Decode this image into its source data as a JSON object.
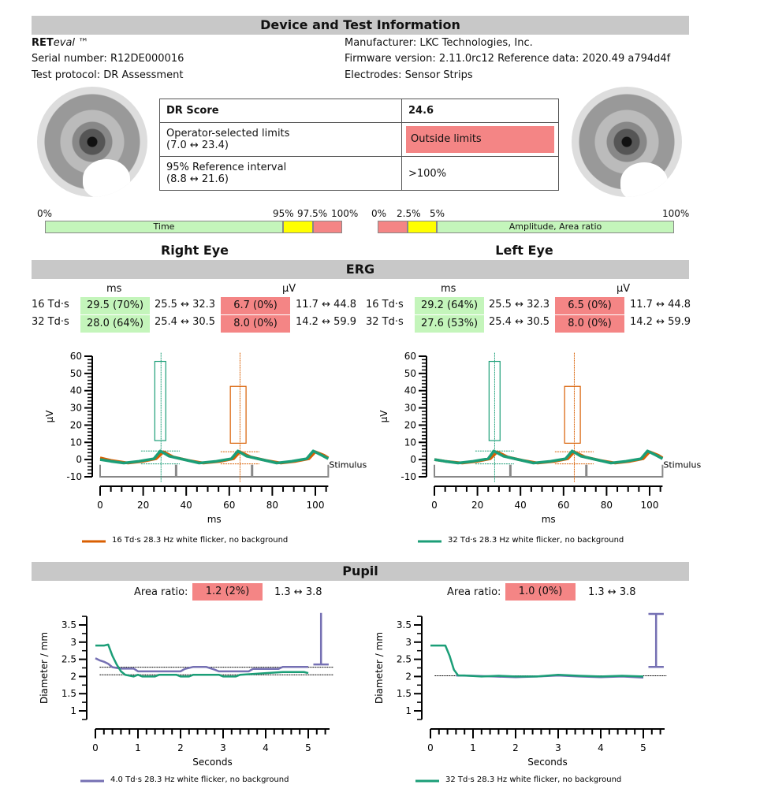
{
  "header": {
    "title": "Device and Test Information"
  },
  "device": {
    "brand_bold": "RET",
    "brand_italic": "eval",
    "brand_tm": " ™",
    "serial": "Serial number: R12DE000016",
    "protocol": "Test protocol: DR Assessment",
    "manufacturer": "Manufacturer: LKC Technologies, Inc.",
    "firmware": "Firmware version: 2.11.0rc12 Reference data: 2020.49 a794d4f",
    "electrodes": "Electrodes: Sensor Strips"
  },
  "dr_table": {
    "score_label": "DR Score",
    "score_value": "24.6",
    "limits_label": "Operator-selected limits",
    "limits_range": "(7.0 ↔ 23.4)",
    "limits_value": "Outside limits",
    "ref_label": "95% Reference interval",
    "ref_range": "(8.8 ↔ 21.6)",
    "ref_value": ">100%"
  },
  "scales": {
    "time": {
      "label": "Time",
      "ticks": [
        "0%",
        "95%",
        "97.5%",
        "100%"
      ]
    },
    "amplitude": {
      "label": "Amplitude, Area ratio",
      "ticks": [
        "0%",
        "2.5%",
        "5%",
        "100%"
      ]
    }
  },
  "colors": {
    "header_gray": "#c8c8c8",
    "ok_green": "#c4f5bb",
    "bad_red": "#f48585",
    "warn_yellow": "#ffff00",
    "trace_orange": "#d95f02",
    "trace_green": "#1b9e77",
    "trace_purple": "#7570b3"
  },
  "eyes": {
    "right": "Right Eye",
    "left": "Left Eye"
  },
  "erg": {
    "title": "ERG",
    "unit_time": "ms",
    "unit_amp": "µV",
    "right": [
      {
        "label": "16 Td·s",
        "time": "29.5 (70%)",
        "time_range": "25.5 ↔ 32.3",
        "amp": "6.7 (0%)",
        "amp_range": "11.7 ↔ 44.8"
      },
      {
        "label": "32 Td·s",
        "time": "28.0 (64%)",
        "time_range": "25.4 ↔ 30.5",
        "amp": "8.0 (0%)",
        "amp_range": "14.2 ↔ 59.9"
      }
    ],
    "left": [
      {
        "label": "16 Td·s",
        "time": "29.2 (64%)",
        "time_range": "25.5 ↔ 32.3",
        "amp": "6.5 (0%)",
        "amp_range": "11.7 ↔ 44.8"
      },
      {
        "label": "32 Td·s",
        "time": "27.6 (53%)",
        "time_range": "25.4 ↔ 30.5",
        "amp": "8.0 (0%)",
        "amp_range": "14.2 ↔ 59.9"
      }
    ]
  },
  "pupil": {
    "title": "Pupil",
    "area_label": "Area ratio:",
    "right": {
      "value": "1.2 (2%)",
      "range": "1.3 ↔ 3.8"
    },
    "left": {
      "value": "1.0 (0%)",
      "range": "1.3 ↔ 3.8"
    }
  },
  "chart_data": [
    {
      "id": "erg-right",
      "type": "line",
      "xlabel": "ms",
      "ylabel": "µV",
      "xlim": [
        0,
        106
      ],
      "ylim": [
        -10,
        60
      ],
      "xticks": [
        0,
        20,
        40,
        60,
        80,
        100
      ],
      "yticks": [
        60,
        50,
        40,
        30,
        20,
        10,
        0,
        -10
      ],
      "annotation": "Stimulus",
      "legend": "16 Td·s 28.3 Hz white flicker, no background",
      "series": [
        {
          "color": "#d95f02",
          "x": [
            0,
            5,
            13,
            20,
            26,
            29.5,
            34,
            41,
            48,
            56,
            62,
            65,
            70,
            77,
            84,
            91,
            97,
            100,
            104,
            106
          ],
          "y": [
            1,
            -0.5,
            -2,
            -1,
            0.5,
            4.5,
            1.5,
            -0.5,
            -2,
            -1,
            0.5,
            4.5,
            1.5,
            -0.5,
            -2,
            -1,
            0.5,
            4.5,
            2.5,
            1
          ]
        },
        {
          "color": "#1b9e77",
          "x": [
            0,
            5,
            11,
            18,
            25,
            28,
            32,
            39,
            46,
            54,
            61,
            64,
            68,
            75,
            82,
            89,
            96,
            99,
            103,
            106
          ],
          "y": [
            0,
            -1,
            -2,
            -1,
            0.5,
            5,
            2,
            0,
            -2,
            -1,
            0.5,
            5,
            2,
            0,
            -2,
            -1,
            0.5,
            5,
            2.5,
            0.5
          ]
        }
      ],
      "boxes": [
        {
          "color": "#1b9e77",
          "x": [
            25.4,
            30.5
          ],
          "y": [
            11,
            57
          ],
          "marker_x": 28.3,
          "hlines": [
            5,
            -2.5
          ],
          "hspan": [
            19,
            37
          ]
        },
        {
          "color": "#d95f02",
          "x": [
            60.5,
            67.8
          ],
          "y": [
            9.5,
            42.5
          ],
          "marker_x": 65,
          "hlines": [
            4.5,
            -2.5
          ],
          "hspan": [
            56,
            74
          ]
        }
      ],
      "stimulus_x": [
        0,
        35.3,
        70.6,
        106
      ]
    },
    {
      "id": "erg-left",
      "type": "line",
      "xlabel": "ms",
      "ylabel": "µV",
      "xlim": [
        0,
        106
      ],
      "ylim": [
        -10,
        60
      ],
      "xticks": [
        0,
        20,
        40,
        60,
        80,
        100
      ],
      "yticks": [
        60,
        50,
        40,
        30,
        20,
        10,
        0,
        -10
      ],
      "annotation": "Stimulus",
      "legend": "32 Td·s 28.3 Hz white flicker, no background",
      "series": [
        {
          "color": "#d95f02",
          "x": [
            0,
            5,
            13,
            20,
            26,
            29.2,
            34,
            41,
            48,
            56,
            62,
            65,
            70,
            77,
            84,
            91,
            97,
            100,
            104,
            106
          ],
          "y": [
            0,
            -1,
            -2,
            -1,
            0.5,
            4.5,
            1.5,
            -0.5,
            -2,
            -1,
            0.5,
            4.5,
            1.5,
            -0.5,
            -2,
            -1,
            0.5,
            4.5,
            2.5,
            1
          ]
        },
        {
          "color": "#1b9e77",
          "x": [
            0,
            5,
            11,
            18,
            25,
            27.6,
            32,
            39,
            46,
            54,
            61,
            64,
            68,
            75,
            82,
            89,
            96,
            99,
            103,
            106
          ],
          "y": [
            0,
            -1,
            -2,
            -1,
            0.5,
            5,
            2,
            0,
            -2,
            -1,
            0.5,
            5,
            2,
            0,
            -2,
            -1,
            0.5,
            5,
            2.5,
            0.5
          ]
        }
      ],
      "boxes": [
        {
          "color": "#1b9e77",
          "x": [
            25.4,
            30.5
          ],
          "y": [
            11,
            57
          ],
          "marker_x": 28,
          "hlines": [
            5,
            -2.5
          ],
          "hspan": [
            19,
            37
          ]
        },
        {
          "color": "#d95f02",
          "x": [
            60.5,
            67.8
          ],
          "y": [
            9.5,
            42.5
          ],
          "marker_x": 65,
          "hlines": [
            4.5,
            -2.5
          ],
          "hspan": [
            56,
            74
          ]
        }
      ],
      "stimulus_x": [
        0,
        35.3,
        70.6,
        106
      ]
    },
    {
      "id": "pupil-right",
      "type": "line",
      "xlabel": "Seconds",
      "ylabel": "Diameter / mm",
      "xlim": [
        0,
        5.5
      ],
      "ylim": [
        0.75,
        3.75
      ],
      "xticks": [
        0,
        1,
        2,
        3,
        4,
        5
      ],
      "yticks": [
        3.5,
        3,
        2.5,
        2,
        1.5,
        1
      ],
      "legend": "4.0 Td·s 28.3 Hz white flicker, no background",
      "series": [
        {
          "color": "#7570b3",
          "x": [
            0,
            0.1,
            0.2,
            0.3,
            0.4,
            0.6,
            0.9,
            1.0,
            2.0,
            2.1,
            2.3,
            2.6,
            2.8,
            2.9,
            3.6,
            3.7,
            4.3,
            4.4,
            5.0
          ],
          "y": [
            2.53,
            2.47,
            2.43,
            2.37,
            2.27,
            2.23,
            2.23,
            2.15,
            2.15,
            2.22,
            2.28,
            2.28,
            2.2,
            2.15,
            2.15,
            2.22,
            2.22,
            2.28,
            2.28
          ]
        },
        {
          "color": "#1b9e77",
          "x": [
            0,
            0.2,
            0.3,
            0.4,
            0.5,
            0.6,
            0.7,
            0.9,
            1.0,
            1.1,
            1.4,
            1.5,
            1.9,
            2.0,
            2.2,
            2.3,
            2.4,
            2.9,
            3.0,
            3.3,
            3.4,
            4.4,
            4.9,
            5.0
          ],
          "y": [
            2.9,
            2.9,
            2.93,
            2.6,
            2.35,
            2.15,
            2.05,
            2.0,
            2.05,
            2.0,
            2.0,
            2.05,
            2.05,
            2.0,
            2.0,
            2.05,
            2.05,
            2.05,
            2.0,
            2.0,
            2.05,
            2.13,
            2.13,
            2.1
          ]
        }
      ],
      "ref_lines": [
        2.27,
        2.05
      ],
      "error_bar": {
        "x": 5.3,
        "y": [
          2.35,
          3.85
        ],
        "color": "#7570b3"
      }
    },
    {
      "id": "pupil-left",
      "type": "line",
      "xlabel": "Seconds",
      "ylabel": "Diameter / mm",
      "xlim": [
        0,
        5.5
      ],
      "ylim": [
        0.75,
        3.75
      ],
      "xticks": [
        0,
        1,
        2,
        3,
        4,
        5
      ],
      "yticks": [
        3.5,
        3,
        2.5,
        2,
        1.5,
        1
      ],
      "legend": "32 Td·s 28.3 Hz white flicker, no background",
      "series": [
        {
          "color": "#7570b3",
          "x": [
            0.6,
            1.0,
            1.5,
            2.0,
            2.5,
            3.0,
            3.5,
            4.0,
            4.5,
            5.0
          ],
          "y": [
            2.03,
            2.02,
            2.0,
            1.98,
            2.0,
            2.03,
            2.0,
            1.98,
            2.0,
            1.97
          ]
        },
        {
          "color": "#1b9e77",
          "x": [
            0,
            0.35,
            0.45,
            0.55,
            0.65,
            0.8,
            1.2,
            1.6,
            2.0,
            2.5,
            3.0,
            3.5,
            4.0,
            4.5,
            5.0
          ],
          "y": [
            2.9,
            2.9,
            2.6,
            2.2,
            2.03,
            2.03,
            2.0,
            2.02,
            2.0,
            2.0,
            2.05,
            2.02,
            2.0,
            2.02,
            2.0
          ]
        }
      ],
      "ref_lines": [
        2.02
      ],
      "error_bar": {
        "x": 5.3,
        "y": [
          2.28,
          3.82
        ],
        "color": "#7570b3"
      }
    }
  ]
}
